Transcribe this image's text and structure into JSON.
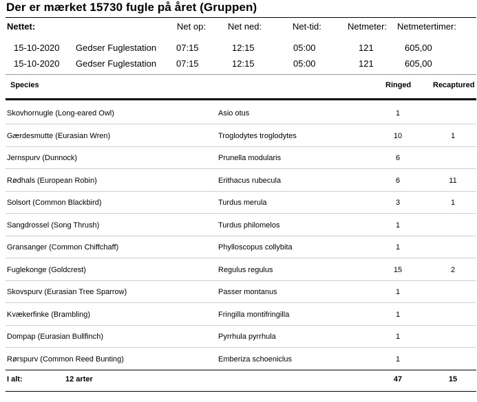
{
  "title": "Der er mærket 15730 fugle på året (Gruppen)",
  "net_header": {
    "label": "Nettet:",
    "net_op": "Net op:",
    "net_ned": "Net ned:",
    "net_tid": "Net-tid:",
    "netmeter": "Netmeter:",
    "netmetertimer": "Netmetertimer:"
  },
  "nets": [
    {
      "date": "15-10-2020",
      "station": "Gedser Fuglestation",
      "up": "07:15",
      "down": "12:15",
      "time": "05:00",
      "meter": "121",
      "meterhours": "605,00"
    },
    {
      "date": "15-10-2020",
      "station": "Gedser Fuglestation",
      "up": "07:15",
      "down": "12:15",
      "time": "05:00",
      "meter": "121",
      "meterhours": "605,00"
    }
  ],
  "columns": {
    "species": "Species",
    "ringed": "Ringed",
    "recaptured": "Recaptured"
  },
  "species": [
    {
      "name": "Skovhornugle   (Long-eared Owl)",
      "latin": "Asio otus",
      "ringed": "1",
      "recaptured": ""
    },
    {
      "name": "Gærdesmutte   (Eurasian Wren)",
      "latin": "Troglodytes troglodytes",
      "ringed": "10",
      "recaptured": "1"
    },
    {
      "name": "Jernspurv   (Dunnock)",
      "latin": "Prunella modularis",
      "ringed": "6",
      "recaptured": ""
    },
    {
      "name": "Rødhals   (European Robin)",
      "latin": "Erithacus rubecula",
      "ringed": "6",
      "recaptured": "11"
    },
    {
      "name": "Solsort   (Common Blackbird)",
      "latin": "Turdus merula",
      "ringed": "3",
      "recaptured": "1"
    },
    {
      "name": "Sangdrossel   (Song Thrush)",
      "latin": "Turdus philomelos",
      "ringed": "1",
      "recaptured": ""
    },
    {
      "name": "Gransanger   (Common Chiffchaff)",
      "latin": "Phylloscopus collybita",
      "ringed": "1",
      "recaptured": ""
    },
    {
      "name": "Fuglekonge   (Goldcrest)",
      "latin": "Regulus regulus",
      "ringed": "15",
      "recaptured": "2"
    },
    {
      "name": "Skovspurv   (Eurasian Tree Sparrow)",
      "latin": "Passer montanus",
      "ringed": "1",
      "recaptured": ""
    },
    {
      "name": "Kvækerfinke   (Brambling)",
      "latin": "Fringilla montifringilla",
      "ringed": "1",
      "recaptured": ""
    },
    {
      "name": "Dompap   (Eurasian Bullfinch)",
      "latin": "Pyrrhula pyrrhula",
      "ringed": "1",
      "recaptured": ""
    },
    {
      "name": "Rørspurv   (Common Reed Bunting)",
      "latin": "Emberiza schoeniclus",
      "ringed": "1",
      "recaptured": ""
    }
  ],
  "total": {
    "label": "I alt:",
    "species_count": "12 arter",
    "ringed": "47",
    "recaptured": "15"
  }
}
